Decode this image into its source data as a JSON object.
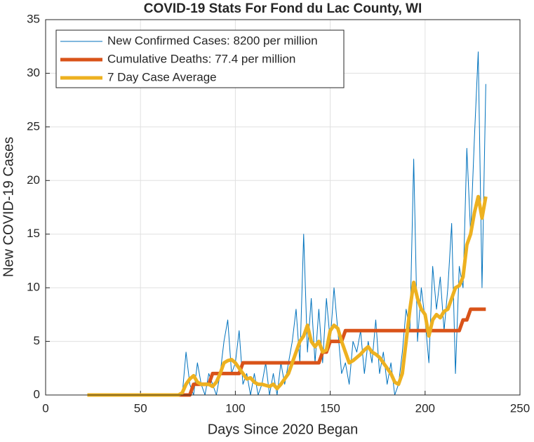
{
  "chart_data": {
    "type": "line",
    "title": "COVID-19 Stats For Fond du Lac County, WI",
    "x_label": "Days Since 2020 Began",
    "y_label": "New COVID-19 Cases",
    "x": [
      22,
      24,
      26,
      28,
      30,
      32,
      34,
      36,
      38,
      40,
      42,
      44,
      46,
      48,
      50,
      52,
      54,
      56,
      58,
      60,
      62,
      64,
      66,
      68,
      70,
      72,
      74,
      76,
      78,
      80,
      82,
      84,
      86,
      88,
      90,
      92,
      94,
      96,
      98,
      100,
      102,
      104,
      106,
      108,
      110,
      112,
      114,
      116,
      118,
      120,
      122,
      124,
      126,
      128,
      130,
      132,
      134,
      136,
      138,
      140,
      142,
      144,
      146,
      148,
      150,
      152,
      154,
      156,
      158,
      160,
      162,
      164,
      166,
      168,
      170,
      172,
      174,
      176,
      178,
      180,
      182,
      184,
      186,
      188,
      190,
      192,
      194,
      196,
      198,
      200,
      202,
      204,
      206,
      208,
      210,
      212,
      214,
      216,
      218,
      220,
      222,
      224,
      226,
      228,
      230,
      232
    ],
    "series": [
      {
        "name": "New Confirmed Cases: 8200 per million",
        "color": "#0072BD",
        "width": 1,
        "values": [
          0,
          0,
          0,
          0,
          0,
          0,
          0,
          0,
          0,
          0,
          0,
          0,
          0,
          0,
          0,
          0,
          0,
          0,
          0,
          0,
          0,
          0,
          0,
          0,
          0,
          0,
          4,
          1,
          0,
          3,
          1,
          0,
          2,
          1,
          0,
          2,
          5,
          7,
          2,
          3,
          6,
          1,
          2,
          0,
          2,
          0,
          1,
          3,
          0,
          2,
          0,
          3,
          1,
          3,
          5,
          8,
          3,
          15,
          4,
          9,
          3,
          8,
          3,
          9,
          5,
          10,
          6,
          2,
          3,
          1,
          5,
          4,
          6,
          2,
          5,
          3,
          7,
          2,
          4,
          1,
          3,
          0,
          1,
          4,
          8,
          6,
          22,
          5,
          10,
          7,
          3,
          12,
          8,
          11,
          6,
          10,
          16,
          2,
          12,
          10,
          23,
          15,
          24,
          32,
          10,
          29
        ]
      },
      {
        "name": "Cumulative Deaths: 77.4 per million",
        "color": "#D95319",
        "width": 5,
        "values": [
          0,
          0,
          0,
          0,
          0,
          0,
          0,
          0,
          0,
          0,
          0,
          0,
          0,
          0,
          0,
          0,
          0,
          0,
          0,
          0,
          0,
          0,
          0,
          0,
          0,
          0,
          0,
          0,
          1,
          1,
          1,
          1,
          1,
          2,
          2,
          2,
          2,
          2,
          2,
          2,
          2,
          3,
          3,
          3,
          3,
          3,
          3,
          3,
          3,
          3,
          3,
          3,
          3,
          3,
          3,
          3,
          3,
          3,
          3,
          3,
          3,
          3,
          4,
          4,
          5,
          5,
          5,
          5,
          6,
          6,
          6,
          6,
          6,
          6,
          6,
          6,
          6,
          6,
          6,
          6,
          6,
          6,
          6,
          6,
          6,
          6,
          6,
          6,
          6,
          6,
          6,
          6,
          6,
          6,
          6,
          6,
          6,
          6,
          6,
          7,
          7,
          8,
          8,
          8,
          8,
          8
        ]
      },
      {
        "name": "7 Day Case Average",
        "color": "#EDB120",
        "width": 5,
        "values": [
          0,
          0,
          0,
          0,
          0,
          0,
          0,
          0,
          0,
          0,
          0,
          0,
          0,
          0,
          0,
          0,
          0,
          0,
          0,
          0,
          0,
          0,
          0,
          0,
          0,
          0.2,
          1,
          1.5,
          1.8,
          1.2,
          1,
          1,
          1,
          0.8,
          1.2,
          2,
          3,
          3.2,
          3.3,
          3,
          2.5,
          2,
          1.5,
          1.6,
          1.2,
          1,
          1,
          0.9,
          0.8,
          1,
          0.6,
          1,
          1.5,
          2,
          3,
          4,
          5,
          5.5,
          6.5,
          5,
          4.5,
          5,
          4,
          4.2,
          6,
          6.5,
          6.2,
          5,
          4,
          3,
          3.2,
          3.5,
          3.8,
          4.2,
          4.5,
          4,
          3.8,
          3.5,
          3,
          2.5,
          2,
          1.2,
          1,
          2,
          5,
          8,
          10.5,
          9,
          8,
          7.5,
          5.5,
          7,
          7.5,
          7.2,
          7.8,
          8,
          9,
          10,
          10.2,
          11,
          14,
          15,
          17,
          18.5,
          16.5,
          18.5
        ]
      }
    ],
    "xlim": [
      0,
      250
    ],
    "xticks": [
      0,
      50,
      100,
      150,
      200,
      250
    ],
    "ylim": [
      0,
      35
    ],
    "yticks": [
      0,
      5,
      10,
      15,
      20,
      25,
      30,
      35
    ],
    "grid": true,
    "legend": "top-left"
  }
}
